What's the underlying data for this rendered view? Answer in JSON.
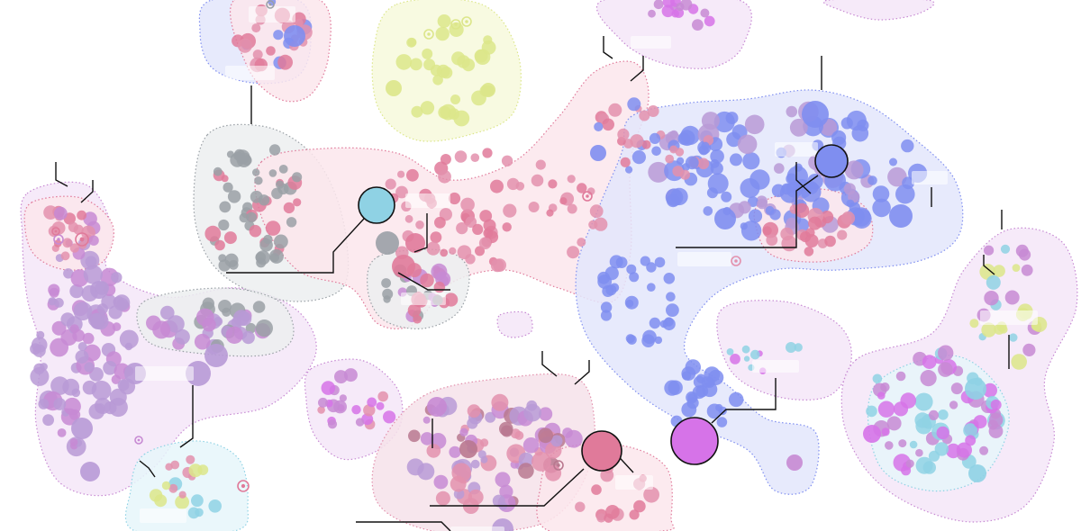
{
  "diagram": {
    "kind": "clustered bubble map",
    "labels_visible": false,
    "palette": {
      "pink": "#e07a9a",
      "rose": "#e391ad",
      "violet": "#c78ad3",
      "lavender": "#b89ad6",
      "blue": "#7f8ef0",
      "gray": "#9aa0a6",
      "lime": "#dce68a",
      "cyan": "#8fd2e4",
      "magenta": "#d673e8",
      "mauve": "#b9788f"
    },
    "fills": {
      "pink": "#fbe6ec",
      "violet": "#f4e6f8",
      "blue": "#e3e6fc",
      "gray": "#eceef0",
      "lime": "#f7f9dc",
      "cyan": "#e6f6fa",
      "rose": "#f6e2ea"
    },
    "clusters": [
      {
        "id": "left-violet",
        "color": "violet"
      },
      {
        "id": "left-pink-small",
        "color": "pink"
      },
      {
        "id": "top-left-blue",
        "color": "blue"
      },
      {
        "id": "top-left-pink",
        "color": "pink"
      },
      {
        "id": "top-lime",
        "color": "lime"
      },
      {
        "id": "center-gray",
        "color": "gray"
      },
      {
        "id": "center-pink-band",
        "color": "pink"
      },
      {
        "id": "center-small-gray",
        "color": "gray"
      },
      {
        "id": "mid-gray-violet",
        "color": "gray"
      },
      {
        "id": "center-violet",
        "color": "violet"
      },
      {
        "id": "bottom-mauve",
        "color": "rose"
      },
      {
        "id": "bottom-pink",
        "color": "pink"
      },
      {
        "id": "bottom-left-cyan",
        "color": "cyan"
      },
      {
        "id": "right-blue",
        "color": "blue"
      },
      {
        "id": "right-pink-pocket",
        "color": "pink"
      },
      {
        "id": "top-violet",
        "color": "violet"
      },
      {
        "id": "mid-violet-right",
        "color": "violet"
      },
      {
        "id": "far-right-violet",
        "color": "violet"
      },
      {
        "id": "far-right-cyan",
        "color": "cyan"
      }
    ],
    "highlight_icons": [
      "target-icon"
    ]
  }
}
